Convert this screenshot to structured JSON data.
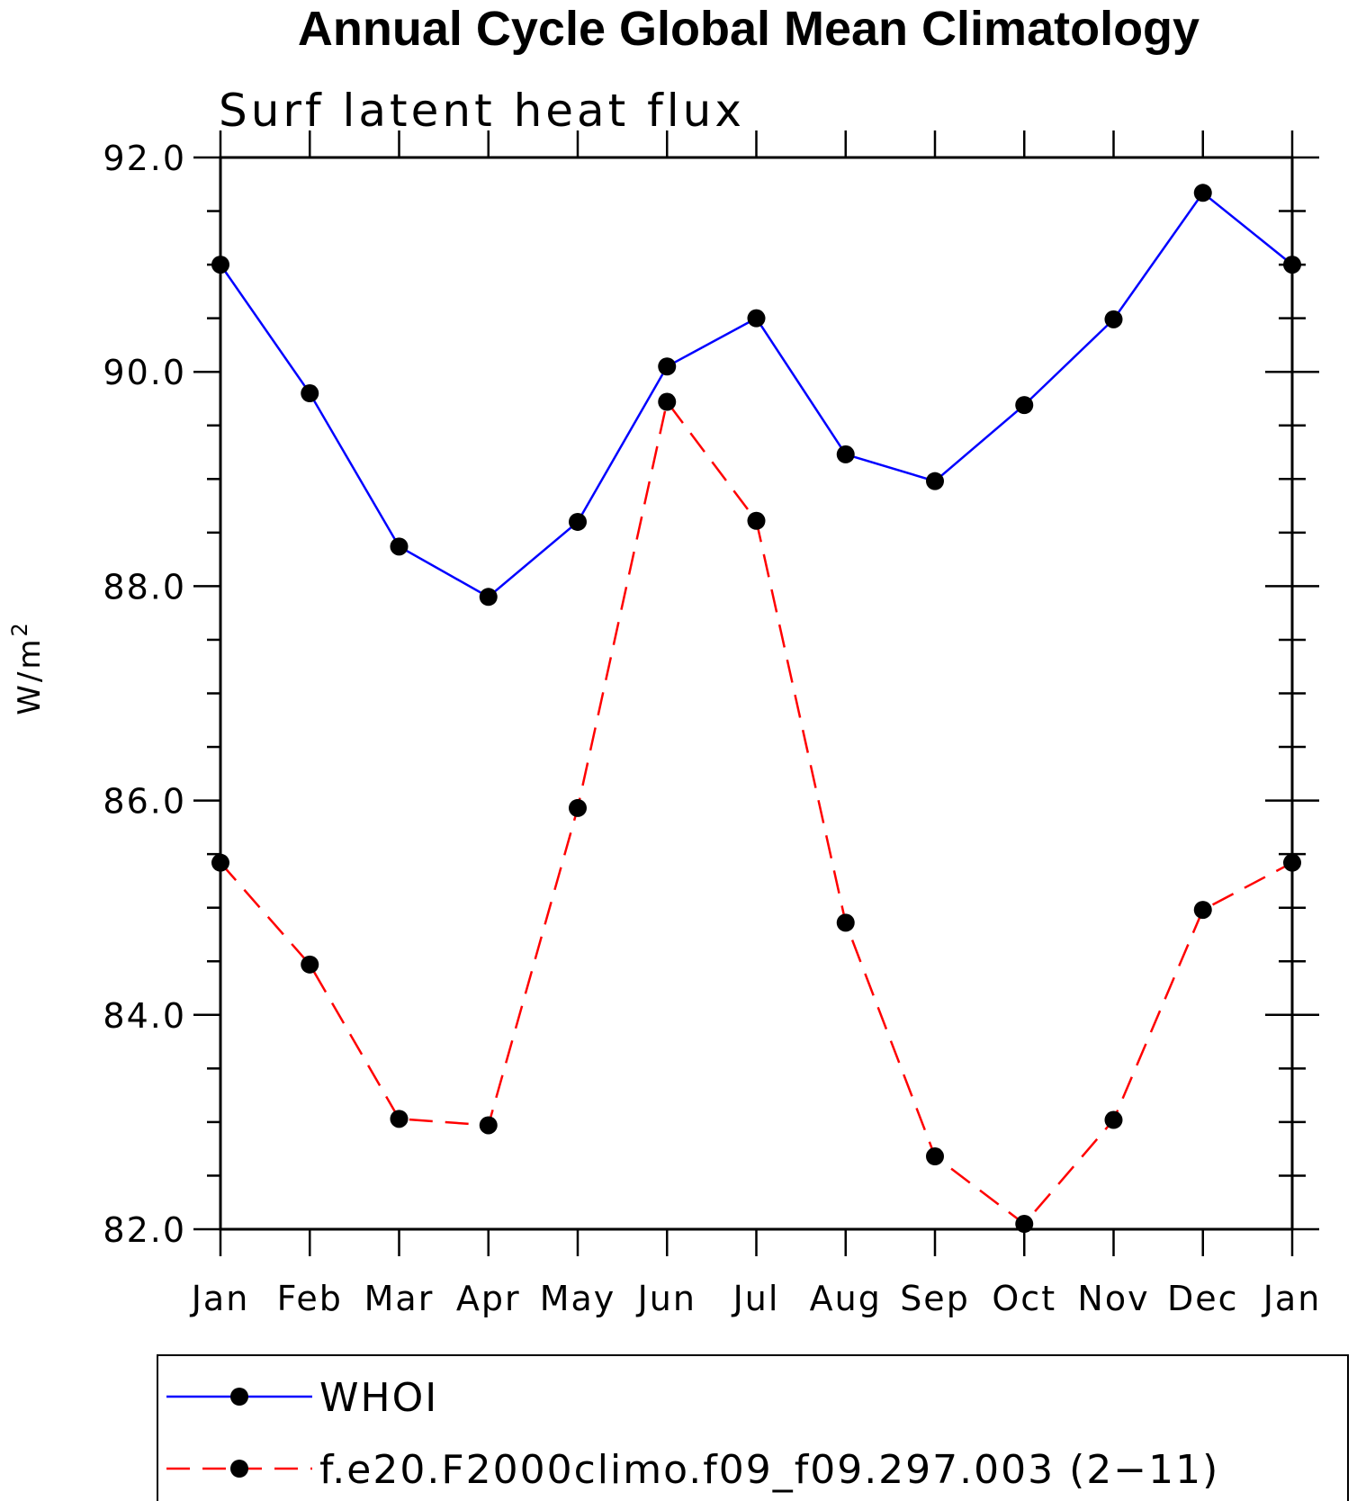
{
  "chart_data": {
    "type": "line",
    "title": "Annual Cycle Global Mean Climatology",
    "subtitle": "Surf latent heat flux",
    "xlabel": "",
    "ylabel": "W/m",
    "ylabel_superscript": "2",
    "categories": [
      "Jan",
      "Feb",
      "Mar",
      "Apr",
      "May",
      "Jun",
      "Jul",
      "Aug",
      "Sep",
      "Oct",
      "Nov",
      "Dec",
      "Jan"
    ],
    "ylim": [
      82.0,
      92.0
    ],
    "yticks": [
      "82.0",
      "84.0",
      "86.0",
      "88.0",
      "90.0",
      "92.0"
    ],
    "series": [
      {
        "name": "WHOI",
        "color": "#0000ff",
        "dash": "solid",
        "values": [
          91.0,
          89.8,
          88.37,
          87.9,
          88.6,
          90.05,
          90.5,
          89.23,
          88.98,
          89.69,
          90.49,
          91.67,
          91.0
        ]
      },
      {
        "name": "f.e20.F2000climo.f09_f09.297.003 (2−11)",
        "color": "#ff0000",
        "dash": "dashed",
        "values": [
          85.42,
          84.47,
          83.03,
          82.97,
          85.93,
          89.72,
          88.61,
          84.86,
          82.68,
          82.05,
          83.02,
          84.98,
          85.42
        ]
      }
    ],
    "marker_color": "#000000",
    "legend_position": "bottom"
  }
}
